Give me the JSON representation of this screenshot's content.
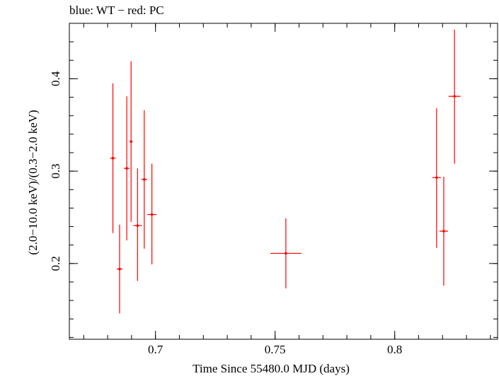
{
  "header": {
    "title": "blue: WT − red: PC"
  },
  "chart_data": {
    "type": "scatter",
    "title": "blue: WT − red: PC",
    "xlabel": "Time Since 55480.0 MJD (days)",
    "ylabel": "(2.0−10.0 keV)/(0.3−2.0 keV)",
    "xlim": [
      0.664,
      0.843
    ],
    "ylim": [
      0.118,
      0.46
    ],
    "x_ticks": [
      0.7,
      0.75,
      0.8
    ],
    "x_tick_labels": [
      "0.7",
      "0.75",
      "0.8"
    ],
    "y_ticks": [
      0.2,
      0.3,
      0.4
    ],
    "y_tick_labels": [
      "0.2",
      "0.3",
      "0.4"
    ],
    "grid": false,
    "series": [
      {
        "color": "#ff0000",
        "points": [
          {
            "x": 0.6822,
            "y": 0.314,
            "xerr": 0.0012,
            "ylo": 0.233,
            "yhi": 0.395
          },
          {
            "x": 0.685,
            "y": 0.194,
            "xerr": 0.0012,
            "ylo": 0.146,
            "yhi": 0.242
          },
          {
            "x": 0.688,
            "y": 0.303,
            "xerr": 0.0012,
            "ylo": 0.225,
            "yhi": 0.381
          },
          {
            "x": 0.6898,
            "y": 0.332,
            "xerr": 0.0006,
            "ylo": 0.245,
            "yhi": 0.419
          },
          {
            "x": 0.6925,
            "y": 0.241,
            "xerr": 0.0018,
            "ylo": 0.181,
            "yhi": 0.303
          },
          {
            "x": 0.6953,
            "y": 0.291,
            "xerr": 0.0012,
            "ylo": 0.216,
            "yhi": 0.366
          },
          {
            "x": 0.6985,
            "y": 0.253,
            "xerr": 0.002,
            "ylo": 0.199,
            "yhi": 0.308
          },
          {
            "x": 0.7545,
            "y": 0.211,
            "xerr": 0.0065,
            "ylo": 0.173,
            "yhi": 0.249
          },
          {
            "x": 0.8175,
            "y": 0.293,
            "xerr": 0.0018,
            "ylo": 0.217,
            "yhi": 0.368
          },
          {
            "x": 0.8205,
            "y": 0.235,
            "xerr": 0.0018,
            "ylo": 0.176,
            "yhi": 0.294
          },
          {
            "x": 0.825,
            "y": 0.381,
            "xerr": 0.0025,
            "ylo": 0.308,
            "yhi": 0.453
          }
        ]
      }
    ]
  }
}
